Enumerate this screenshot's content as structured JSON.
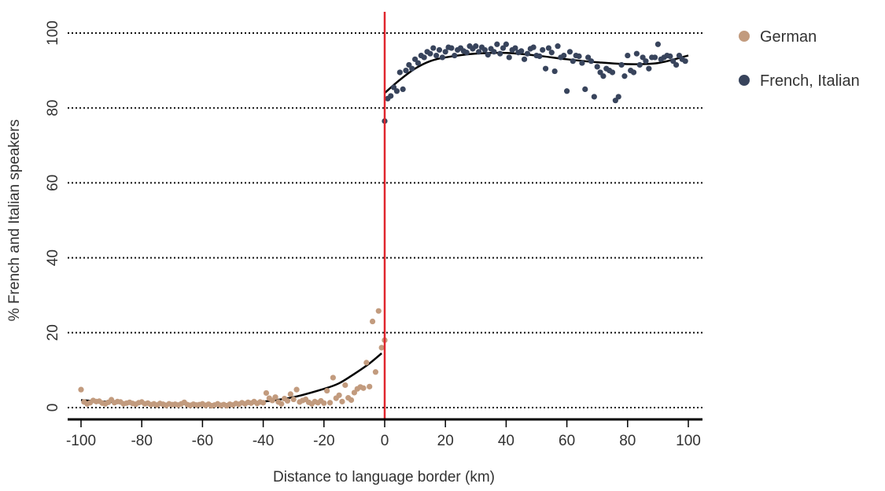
{
  "chart_data": {
    "type": "scatter",
    "xlabel": "Distance to language border (km)",
    "ylabel": "% French and Italian speakers",
    "xlim": [
      -100,
      100
    ],
    "ylim": [
      -3,
      105
    ],
    "xticks": [
      "-100",
      "-80",
      "-60",
      "-40",
      "-20",
      "0",
      "20",
      "40",
      "60",
      "80",
      "100"
    ],
    "yticks": [
      "0",
      "20",
      "40",
      "60",
      "80",
      "100"
    ],
    "grid": "horizontal-dotted",
    "legend_position": "top-right",
    "border_line_x": 0,
    "colors": {
      "german": "#c29b7e",
      "french_italian": "#38445c",
      "border": "#e0262e",
      "fit": "#000000"
    },
    "series": [
      {
        "name": "German",
        "points": [
          [
            -100,
            4.8
          ],
          [
            -99,
            1.5
          ],
          [
            -98,
            1.0
          ],
          [
            -97,
            1.3
          ],
          [
            -96,
            1.9
          ],
          [
            -95,
            1.6
          ],
          [
            -94,
            1.7
          ],
          [
            -93,
            1.2
          ],
          [
            -92,
            1.0
          ],
          [
            -91,
            1.4
          ],
          [
            -90,
            2.1
          ],
          [
            -89,
            1.3
          ],
          [
            -88,
            1.6
          ],
          [
            -87,
            1.5
          ],
          [
            -86,
            1.0
          ],
          [
            -85,
            1.2
          ],
          [
            -84,
            1.4
          ],
          [
            -83,
            1.1
          ],
          [
            -82,
            0.9
          ],
          [
            -81,
            1.3
          ],
          [
            -80,
            1.5
          ],
          [
            -79,
            1.0
          ],
          [
            -78,
            1.2
          ],
          [
            -77,
            0.8
          ],
          [
            -76,
            1.0
          ],
          [
            -75,
            0.7
          ],
          [
            -74,
            1.1
          ],
          [
            -73,
            0.9
          ],
          [
            -72,
            0.6
          ],
          [
            -71,
            1.0
          ],
          [
            -70,
            0.8
          ],
          [
            -69,
            0.9
          ],
          [
            -68,
            0.7
          ],
          [
            -67,
            1.0
          ],
          [
            -66,
            1.4
          ],
          [
            -65,
            0.8
          ],
          [
            -64,
            0.6
          ],
          [
            -63,
            0.9
          ],
          [
            -62,
            0.7
          ],
          [
            -61,
            0.8
          ],
          [
            -60,
            1.0
          ],
          [
            -59,
            0.6
          ],
          [
            -58,
            0.9
          ],
          [
            -57,
            0.5
          ],
          [
            -56,
            0.7
          ],
          [
            -55,
            1.0
          ],
          [
            -54,
            0.6
          ],
          [
            -53,
            0.8
          ],
          [
            -52,
            0.5
          ],
          [
            -51,
            0.9
          ],
          [
            -50,
            0.7
          ],
          [
            -49,
            1.1
          ],
          [
            -48,
            0.9
          ],
          [
            -47,
            1.3
          ],
          [
            -46,
            1.0
          ],
          [
            -45,
            1.4
          ],
          [
            -44,
            1.2
          ],
          [
            -43,
            1.6
          ],
          [
            -42,
            1.1
          ],
          [
            -41,
            1.5
          ],
          [
            -40,
            1.3
          ],
          [
            -39,
            3.9
          ],
          [
            -38,
            2.5
          ],
          [
            -37,
            1.9
          ],
          [
            -36,
            2.8
          ],
          [
            -35,
            1.5
          ],
          [
            -34,
            1.0
          ],
          [
            -33,
            2.4
          ],
          [
            -32,
            1.8
          ],
          [
            -31,
            3.6
          ],
          [
            -30,
            2.2
          ],
          [
            -29,
            4.8
          ],
          [
            -28,
            1.5
          ],
          [
            -27,
            1.9
          ],
          [
            -26,
            2.2
          ],
          [
            -25,
            1.4
          ],
          [
            -24,
            1.0
          ],
          [
            -23,
            1.6
          ],
          [
            -22,
            1.3
          ],
          [
            -21,
            1.8
          ],
          [
            -20,
            1.2
          ],
          [
            -19,
            4.5
          ],
          [
            -18,
            1.3
          ],
          [
            -17,
            8.0
          ],
          [
            -16,
            2.5
          ],
          [
            -15,
            3.3
          ],
          [
            -14,
            1.6
          ],
          [
            -13,
            6.0
          ],
          [
            -12,
            2.6
          ],
          [
            -11,
            2.0
          ],
          [
            -10,
            4.0
          ],
          [
            -9,
            5.0
          ],
          [
            -8,
            5.5
          ],
          [
            -7,
            5.2
          ],
          [
            -6,
            12.0
          ],
          [
            -5,
            5.6
          ],
          [
            -4,
            23.0
          ],
          [
            -3,
            9.5
          ],
          [
            -2,
            25.8
          ],
          [
            -1,
            16.0
          ],
          [
            0,
            18.0
          ]
        ]
      },
      {
        "name": "French, Italian",
        "points": [
          [
            0,
            76.5
          ],
          [
            1,
            82.5
          ],
          [
            2,
            83.2
          ],
          [
            3,
            85.5
          ],
          [
            4,
            84.5
          ],
          [
            5,
            89.5
          ],
          [
            6,
            85.0
          ],
          [
            7,
            90.0
          ],
          [
            8,
            91.5
          ],
          [
            9,
            90.5
          ],
          [
            10,
            93.0
          ],
          [
            11,
            92.0
          ],
          [
            12,
            94.0
          ],
          [
            13,
            93.5
          ],
          [
            14,
            95.0
          ],
          [
            15,
            94.5
          ],
          [
            16,
            96.0
          ],
          [
            17,
            94.0
          ],
          [
            18,
            95.5
          ],
          [
            19,
            93.5
          ],
          [
            20,
            95.0
          ],
          [
            21,
            96.2
          ],
          [
            22,
            96.0
          ],
          [
            23,
            94.0
          ],
          [
            24,
            95.5
          ],
          [
            25,
            96.0
          ],
          [
            26,
            95.2
          ],
          [
            27,
            94.8
          ],
          [
            28,
            96.5
          ],
          [
            29,
            95.8
          ],
          [
            30,
            96.5
          ],
          [
            31,
            95.0
          ],
          [
            32,
            96.2
          ],
          [
            33,
            95.5
          ],
          [
            34,
            94.2
          ],
          [
            35,
            95.8
          ],
          [
            36,
            95.0
          ],
          [
            37,
            97.0
          ],
          [
            38,
            94.5
          ],
          [
            39,
            96.0
          ],
          [
            40,
            97.0
          ],
          [
            41,
            93.5
          ],
          [
            42,
            95.5
          ],
          [
            43,
            96.0
          ],
          [
            44,
            94.8
          ],
          [
            45,
            95.2
          ],
          [
            46,
            93.0
          ],
          [
            47,
            94.5
          ],
          [
            48,
            95.8
          ],
          [
            49,
            96.2
          ],
          [
            50,
            94.0
          ],
          [
            51,
            93.8
          ],
          [
            52,
            95.5
          ],
          [
            53,
            90.5
          ],
          [
            54,
            96.0
          ],
          [
            55,
            94.8
          ],
          [
            56,
            89.8
          ],
          [
            57,
            96.5
          ],
          [
            58,
            93.5
          ],
          [
            59,
            94.0
          ],
          [
            60,
            84.5
          ],
          [
            61,
            95.0
          ],
          [
            62,
            92.5
          ],
          [
            63,
            94.0
          ],
          [
            64,
            93.8
          ],
          [
            65,
            92.0
          ],
          [
            66,
            85.0
          ],
          [
            67,
            93.5
          ],
          [
            68,
            92.5
          ],
          [
            69,
            83.0
          ],
          [
            70,
            91.0
          ],
          [
            71,
            89.5
          ],
          [
            72,
            88.5
          ],
          [
            73,
            90.5
          ],
          [
            74,
            90.0
          ],
          [
            75,
            89.5
          ],
          [
            76,
            82.0
          ],
          [
            77,
            83.0
          ],
          [
            78,
            91.5
          ],
          [
            79,
            88.5
          ],
          [
            80,
            94.0
          ],
          [
            81,
            90.0
          ],
          [
            82,
            89.5
          ],
          [
            83,
            94.5
          ],
          [
            84,
            91.5
          ],
          [
            85,
            93.5
          ],
          [
            86,
            92.5
          ],
          [
            87,
            90.5
          ],
          [
            88,
            93.5
          ],
          [
            89,
            93.5
          ],
          [
            90,
            97.0
          ],
          [
            91,
            93.0
          ],
          [
            92,
            93.5
          ],
          [
            93,
            94.0
          ],
          [
            94,
            93.8
          ],
          [
            95,
            92.5
          ],
          [
            96,
            91.5
          ],
          [
            97,
            94.0
          ],
          [
            98,
            93.0
          ],
          [
            99,
            92.5
          ]
        ]
      }
    ],
    "fit_lines": [
      {
        "series": "German",
        "x_range": [
          -100,
          -1
        ],
        "points": [
          [
            -100,
            2.0
          ],
          [
            -90,
            1.5
          ],
          [
            -80,
            1.2
          ],
          [
            -70,
            1.0
          ],
          [
            -60,
            0.9
          ],
          [
            -50,
            1.0
          ],
          [
            -40,
            1.6
          ],
          [
            -30,
            2.8
          ],
          [
            -20,
            5.0
          ],
          [
            -15,
            6.5
          ],
          [
            -10,
            9.0
          ],
          [
            -5,
            11.8
          ],
          [
            -1,
            14.5
          ]
        ]
      },
      {
        "series": "French, Italian",
        "x_range": [
          0,
          100
        ],
        "points": [
          [
            0,
            84.0
          ],
          [
            5,
            87.5
          ],
          [
            10,
            90.5
          ],
          [
            15,
            92.5
          ],
          [
            20,
            93.5
          ],
          [
            30,
            94.5
          ],
          [
            40,
            94.7
          ],
          [
            50,
            94.0
          ],
          [
            60,
            93.0
          ],
          [
            70,
            92.2
          ],
          [
            80,
            91.7
          ],
          [
            90,
            92.0
          ],
          [
            100,
            94.0
          ]
        ]
      }
    ]
  }
}
